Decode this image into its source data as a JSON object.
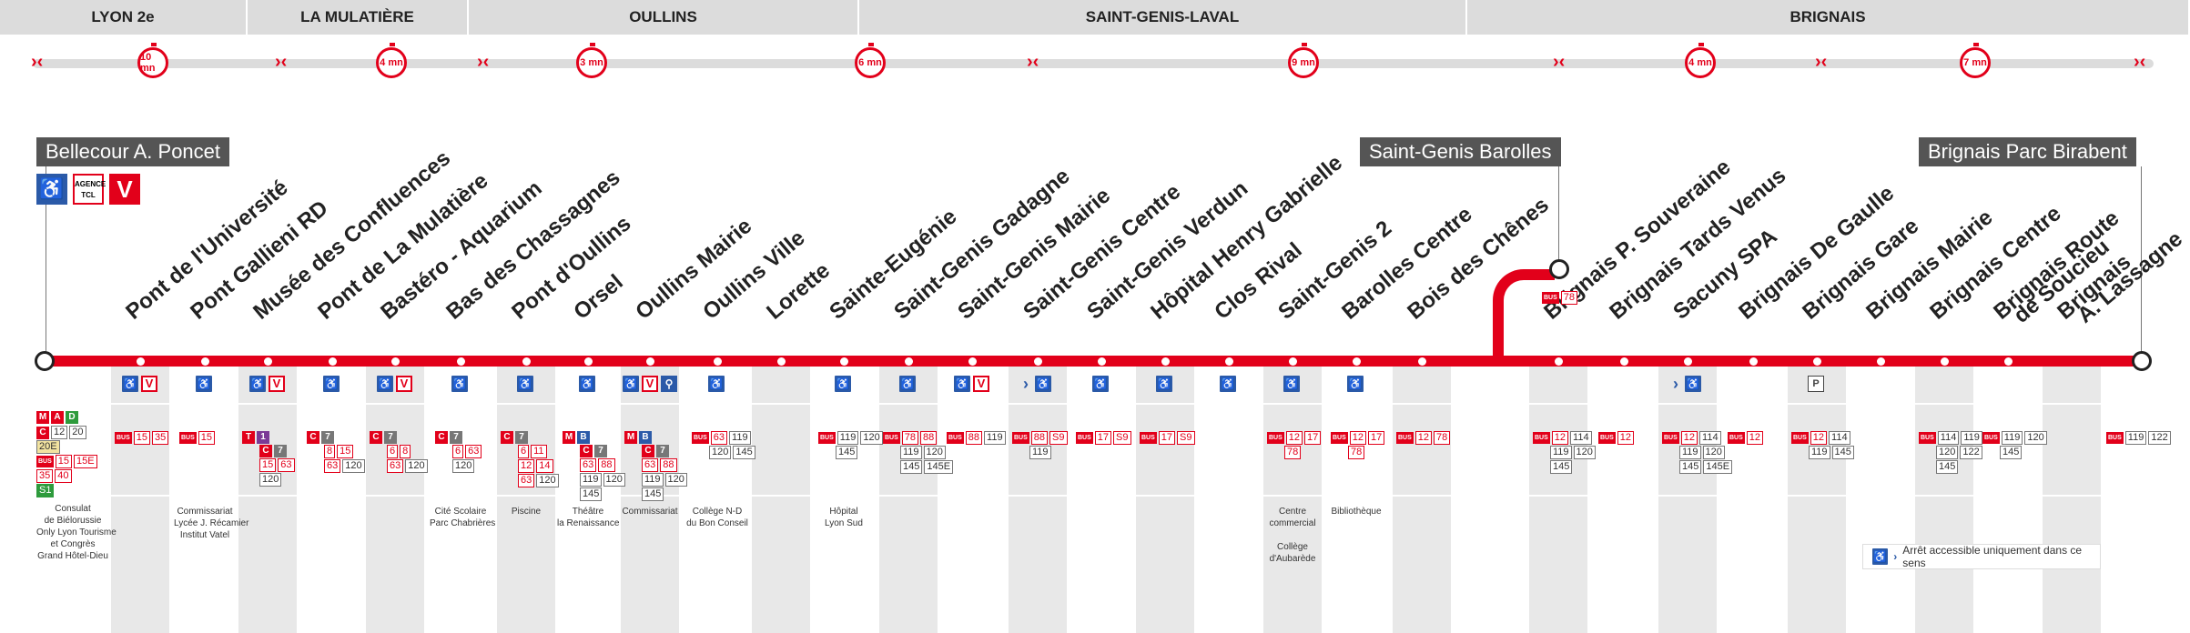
{
  "colors": {
    "red": "#e2001a",
    "blue": "#2b5aa8",
    "grey": "#dcdcdc",
    "dark": "#555555"
  },
  "zones": [
    {
      "label": "LYON 2e"
    },
    {
      "label": "LA MULATIÈRE"
    },
    {
      "label": "OULLINS"
    },
    {
      "label": "SAINT-GENIS-LAVAL"
    },
    {
      "label": "BRIGNAIS"
    }
  ],
  "durations": [
    "10",
    "4",
    "3",
    "6",
    "9",
    "4",
    "7"
  ],
  "duration_unit": "mn",
  "terminals": {
    "start": "Bellecour A. Poncet",
    "middle": "Saint-Genis Barolles",
    "end": "Brignais Parc Birabent"
  },
  "start_services": {
    "agency_label": "AGENCE TCL",
    "metro": [
      "M A",
      "D"
    ],
    "bus_rows": [
      [
        "C",
        "12",
        "20"
      ],
      [
        "20E"
      ],
      [
        "15",
        "15E"
      ],
      [
        "35",
        "40"
      ],
      [
        "S1"
      ]
    ],
    "poi": "Consulat\nde Biélorussie\nOnly Lyon Tourisme\net Congrès\nGrand Hôtel-Dieu"
  },
  "stops": [
    {
      "name": "Pont de l'Université",
      "icons": [
        "accessible",
        "tram"
      ],
      "lines": [
        [
          "15",
          "35"
        ]
      ],
      "poi": ""
    },
    {
      "name": "Pont Gallieni RD",
      "icons": [
        "accessible"
      ],
      "lines": [
        [
          "15"
        ]
      ],
      "poi": "Commissariat\nLycée J. Récamier\nInstitut Vatel"
    },
    {
      "name": "Musée des Confluences",
      "icons": [
        "accessible",
        "tram"
      ],
      "lines": [
        [
          "T1"
        ],
        [
          "C7"
        ],
        [
          "15",
          "63"
        ],
        [
          "120"
        ]
      ],
      "poi": ""
    },
    {
      "name": "Pont de La Mulatière",
      "icons": [
        "accessible"
      ],
      "lines": [
        [
          "C7"
        ],
        [
          "8",
          "15"
        ],
        [
          "63",
          "120"
        ]
      ],
      "poi": ""
    },
    {
      "name": "Bastéro - Aquarium",
      "icons": [
        "accessible",
        "tram"
      ],
      "lines": [
        [
          "C7"
        ],
        [
          "6",
          "8"
        ],
        [
          "63",
          "120"
        ]
      ],
      "poi": ""
    },
    {
      "name": "Bas des Chassagnes",
      "icons": [
        "accessible"
      ],
      "lines": [
        [
          "C7"
        ],
        [
          "6",
          "63"
        ],
        [
          "120"
        ]
      ],
      "poi": "Cité Scolaire\nParc Chabrières"
    },
    {
      "name": "Pont d'Oullins",
      "icons": [
        "accessible"
      ],
      "lines": [
        [
          "C7"
        ],
        [
          "6",
          "11"
        ],
        [
          "12",
          "14"
        ],
        [
          "63",
          "120"
        ]
      ],
      "poi": "Piscine"
    },
    {
      "name": "Orsel",
      "icons": [
        "accessible"
      ],
      "lines": [
        [
          "M B"
        ],
        [
          "C7"
        ],
        [
          "63",
          "88"
        ],
        [
          "119",
          "120"
        ],
        [
          "145"
        ]
      ],
      "poi": "Théâtre\nla Renaissance"
    },
    {
      "name": "Oullins Mairie",
      "icons": [
        "accessible",
        "tram",
        "bike"
      ],
      "lines": [
        [
          "M B"
        ],
        [
          "C7"
        ],
        [
          "63",
          "88"
        ],
        [
          "119",
          "120"
        ],
        [
          "145"
        ]
      ],
      "poi": "Commissariat"
    },
    {
      "name": "Oullins Ville",
      "icons": [
        "accessible"
      ],
      "lines": [
        [
          "63",
          "119"
        ],
        [
          "120",
          "145"
        ]
      ],
      "poi": "Collège N-D\ndu Bon Conseil"
    },
    {
      "name": "Lorette",
      "icons": [],
      "lines": [],
      "poi": ""
    },
    {
      "name": "Sainte-Eugénie",
      "icons": [
        "accessible"
      ],
      "lines": [
        [
          "119",
          "120"
        ],
        [
          "145"
        ]
      ],
      "poi": "Hôpital\nLyon Sud"
    },
    {
      "name": "Saint-Genis Gadagne",
      "icons": [
        "accessible"
      ],
      "lines": [
        [
          "78",
          "88"
        ],
        [
          "119",
          "120"
        ],
        [
          "145",
          "145E"
        ]
      ],
      "poi": ""
    },
    {
      "name": "Saint-Genis Mairie",
      "icons": [
        "accessible",
        "tram"
      ],
      "lines": [
        [
          "88",
          "119"
        ]
      ],
      "poi": ""
    },
    {
      "name": "Saint-Genis Centre",
      "icons": [
        "arrow",
        "accessible"
      ],
      "lines": [
        [
          "88",
          "S9"
        ],
        [
          "119"
        ]
      ],
      "poi": ""
    },
    {
      "name": "Saint-Genis Verdun",
      "icons": [
        "accessible"
      ],
      "lines": [
        [
          "17",
          "S9"
        ]
      ],
      "poi": ""
    },
    {
      "name": "Hôpital Henry Gabrielle",
      "icons": [
        "accessible"
      ],
      "lines": [
        [
          "17",
          "S9"
        ]
      ],
      "poi": ""
    },
    {
      "name": "Clos Rival",
      "icons": [
        "accessible"
      ],
      "lines": [],
      "poi": ""
    },
    {
      "name": "Saint-Genis 2",
      "icons": [
        "accessible"
      ],
      "lines": [
        [
          "12",
          "17"
        ],
        [
          "78"
        ]
      ],
      "poi": "Centre\ncommercial\n\nCollège\nd'Aubarède"
    },
    {
      "name": "Barolles Centre",
      "icons": [
        "accessible"
      ],
      "lines": [
        [
          "12",
          "17"
        ],
        [
          "78"
        ]
      ],
      "poi": "Bibliothèque"
    },
    {
      "name": "Bois des Chênes",
      "icons": [],
      "lines": [
        [
          "12",
          "78"
        ]
      ],
      "poi": ""
    },
    {
      "name": "Brignais P. Souveraine",
      "icons": [],
      "lines": [
        [
          "12",
          "114"
        ],
        [
          "119",
          "120"
        ],
        [
          "145"
        ]
      ],
      "poi": ""
    },
    {
      "name": "Brignais Tards Venus",
      "icons": [],
      "lines": [
        [
          "12"
        ]
      ],
      "poi": ""
    },
    {
      "name": "Sacuny SPA",
      "icons": [
        "arrow",
        "accessible"
      ],
      "lines": [
        [
          "12",
          "114"
        ],
        [
          "119",
          "120"
        ],
        [
          "145",
          "145E"
        ]
      ],
      "poi": ""
    },
    {
      "name": "Brignais De Gaulle",
      "icons": [],
      "lines": [
        [
          "12"
        ]
      ],
      "poi": ""
    },
    {
      "name": "Brignais Gare",
      "icons": [
        "parking"
      ],
      "lines": [
        [
          "12",
          "114"
        ],
        [
          "119",
          "145"
        ]
      ],
      "poi": ""
    },
    {
      "name": "Brignais Mairie",
      "icons": [],
      "lines": [],
      "poi": ""
    },
    {
      "name": "Brignais Centre",
      "icons": [],
      "lines": [
        [
          "114",
          "119"
        ],
        [
          "120",
          "122"
        ],
        [
          "145"
        ]
      ],
      "poi": ""
    },
    {
      "name": "Brignais Route\nde Soucieu",
      "icons": [],
      "lines": [
        [
          "119",
          "120"
        ],
        [
          "145"
        ]
      ],
      "poi": ""
    },
    {
      "name": "Brignais\nA. Lassagne",
      "icons": [],
      "lines": [],
      "poi": ""
    }
  ],
  "end_services": {
    "lines": [
      [
        "119",
        "122"
      ]
    ]
  },
  "barolles_lines": [
    [
      "78"
    ]
  ],
  "legend": {
    "text": "Arrêt accessible uniquement dans ce sens"
  }
}
